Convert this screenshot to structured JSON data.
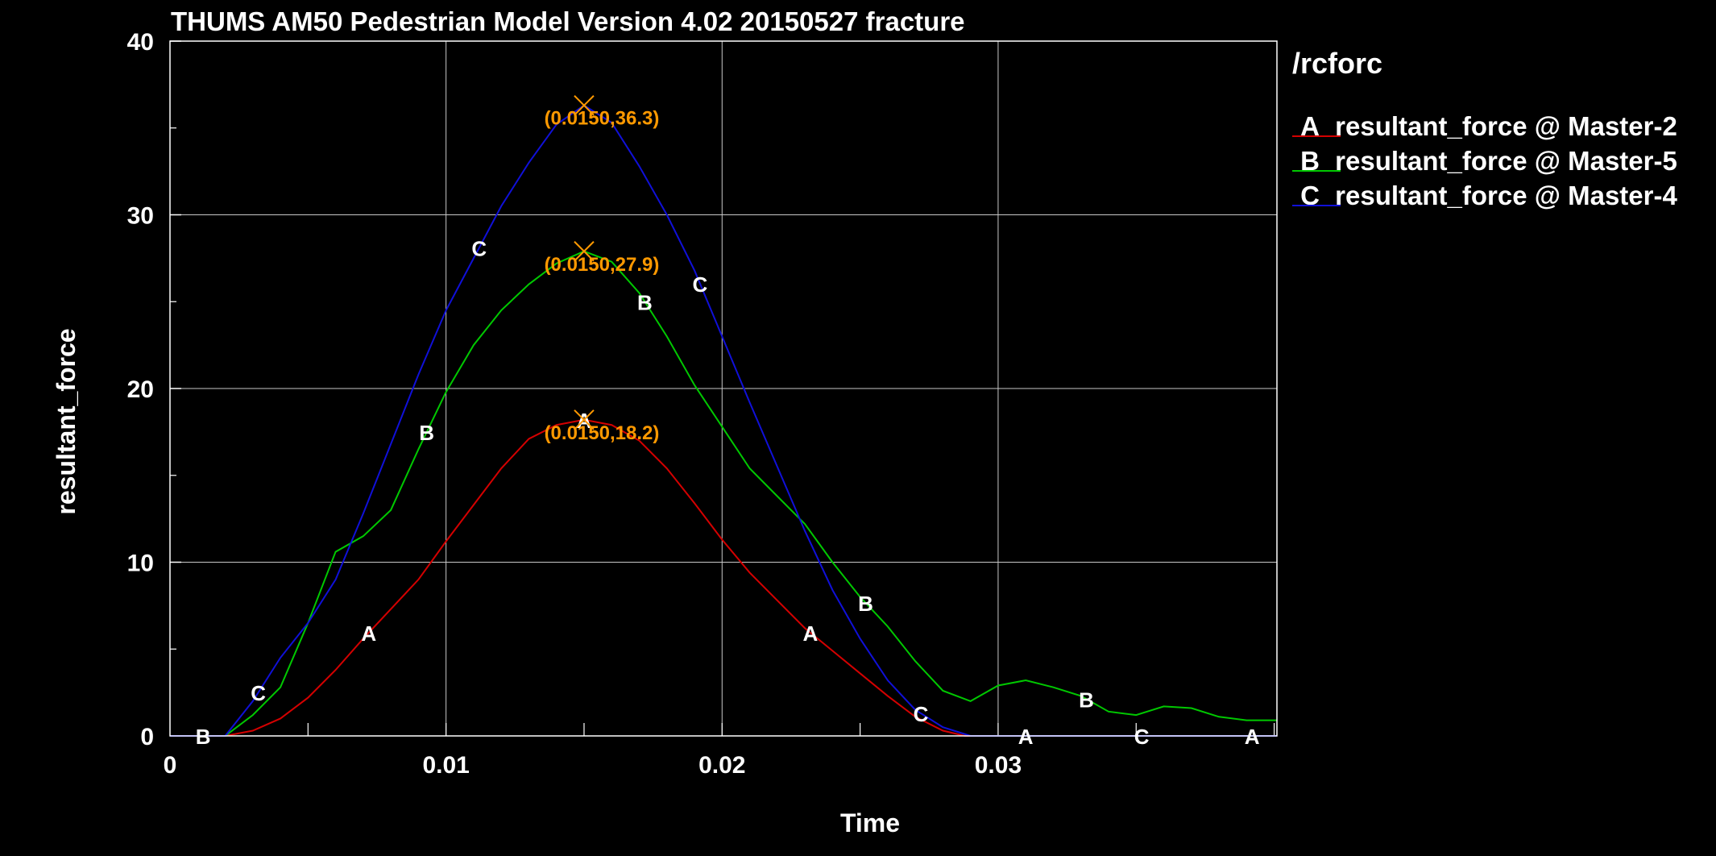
{
  "chart_data": {
    "type": "line",
    "title": "THUMS AM50 Pedestrian Model Version 4.02 20150527 fracture",
    "xlabel": "Time",
    "ylabel": "resultant_force",
    "xlim": [
      0,
      0.0401
    ],
    "ylim": [
      0,
      40
    ],
    "x_ticks": [
      "0",
      "0.01",
      "0.02",
      "0.03"
    ],
    "y_ticks": [
      "0",
      "10",
      "20",
      "30",
      "40"
    ],
    "grid": true,
    "legend_title": "/rcforc",
    "legend_position": "right",
    "series": [
      {
        "letter": "A",
        "name": "resultant_force @ Master-2",
        "color": "#d40000",
        "x": [
          0,
          0.002,
          0.003,
          0.004,
          0.005,
          0.006,
          0.007,
          0.008,
          0.009,
          0.01,
          0.011,
          0.012,
          0.013,
          0.014,
          0.015,
          0.016,
          0.017,
          0.018,
          0.019,
          0.02,
          0.021,
          0.022,
          0.023,
          0.024,
          0.025,
          0.026,
          0.027,
          0.028,
          0.0288,
          0.03,
          0.0401
        ],
        "y": [
          0,
          0,
          0.3,
          1.0,
          2.2,
          3.8,
          5.6,
          7.3,
          9.0,
          11.2,
          13.3,
          15.4,
          17.1,
          17.9,
          18.2,
          17.9,
          17.0,
          15.4,
          13.4,
          11.3,
          9.4,
          7.8,
          6.2,
          4.9,
          3.6,
          2.3,
          1.1,
          0.3,
          0,
          0,
          0
        ],
        "marker_labels_x": [
          0.0072,
          0.015,
          0.0232,
          0.031,
          0.0392
        ]
      },
      {
        "letter": "B",
        "name": "resultant_force @ Master-5",
        "color": "#00c800",
        "x": [
          0,
          0.002,
          0.003,
          0.004,
          0.005,
          0.006,
          0.007,
          0.008,
          0.009,
          0.01,
          0.011,
          0.012,
          0.013,
          0.014,
          0.015,
          0.016,
          0.017,
          0.018,
          0.019,
          0.02,
          0.021,
          0.022,
          0.023,
          0.024,
          0.025,
          0.026,
          0.027,
          0.028,
          0.029,
          0.03,
          0.031,
          0.032,
          0.033,
          0.034,
          0.035,
          0.036,
          0.037,
          0.038,
          0.039,
          0.0401
        ],
        "y": [
          0,
          0,
          1.2,
          2.8,
          6.5,
          10.6,
          11.5,
          13.0,
          16.5,
          19.8,
          22.5,
          24.5,
          26.0,
          27.2,
          27.9,
          27.3,
          25.5,
          23.0,
          20.2,
          17.8,
          15.4,
          13.8,
          12.2,
          10.0,
          8.0,
          6.3,
          4.3,
          2.6,
          2.0,
          2.9,
          3.2,
          2.8,
          2.3,
          1.4,
          1.2,
          1.7,
          1.6,
          1.1,
          0.9,
          0.9
        ],
        "marker_labels_x": [
          0.0012,
          0.0093,
          0.0172,
          0.0252,
          0.0332
        ]
      },
      {
        "letter": "C",
        "name": "resultant_force @ Master-4",
        "color": "#1010d8",
        "x": [
          0,
          0.002,
          0.003,
          0.004,
          0.005,
          0.006,
          0.007,
          0.008,
          0.009,
          0.01,
          0.011,
          0.012,
          0.013,
          0.014,
          0.015,
          0.016,
          0.017,
          0.018,
          0.019,
          0.02,
          0.021,
          0.022,
          0.023,
          0.024,
          0.025,
          0.026,
          0.027,
          0.028,
          0.029,
          0.03,
          0.0401
        ],
        "y": [
          0,
          0,
          2.0,
          4.5,
          6.5,
          9.0,
          12.8,
          16.8,
          20.8,
          24.5,
          27.5,
          30.5,
          33.0,
          35.2,
          36.3,
          35.3,
          32.8,
          30.0,
          26.8,
          23.0,
          19.2,
          15.5,
          11.8,
          8.4,
          5.6,
          3.2,
          1.5,
          0.5,
          0,
          0,
          0
        ],
        "marker_labels_x": [
          0.0032,
          0.0112,
          0.0192,
          0.0272,
          0.0352
        ]
      }
    ],
    "annotations": [
      {
        "text": "(0.0150,36.3)",
        "x": 0.015,
        "y": 36.3,
        "color": "#ff9900"
      },
      {
        "text": "(0.0150,27.9)",
        "x": 0.015,
        "y": 27.9,
        "color": "#ff9900"
      },
      {
        "text": "(0.0150,18.2)",
        "x": 0.015,
        "y": 18.2,
        "color": "#ff9900"
      }
    ]
  }
}
